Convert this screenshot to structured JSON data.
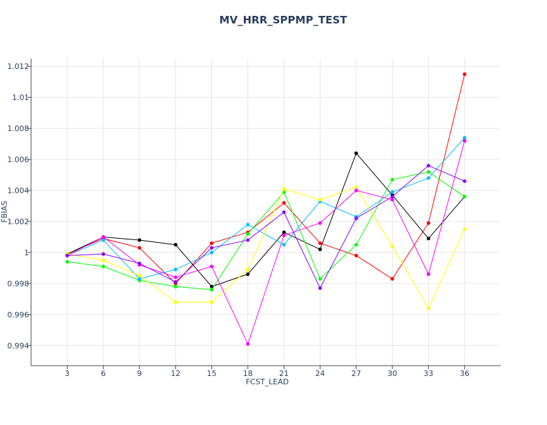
{
  "chart_data": {
    "type": "line",
    "title": "MV_HRR_SPPMP_TEST",
    "xlabel": "FCST_LEAD",
    "ylabel": "FBIAS",
    "x": [
      3,
      6,
      9,
      12,
      15,
      18,
      21,
      24,
      27,
      30,
      33,
      36
    ],
    "xlim": [
      0,
      39
    ],
    "ylim": [
      0.9927,
      1.0125
    ],
    "yticks": [
      0.994,
      0.996,
      0.998,
      1,
      1.002,
      1.004,
      1.006,
      1.008,
      1.01,
      1.012
    ],
    "ytick_labels": [
      "0.994",
      "0.996",
      "0.998",
      "1",
      "1.002",
      "1.004",
      "1.006",
      "1.008",
      "1.01",
      "1.012"
    ],
    "xtick_labels": [
      "3",
      "6",
      "9",
      "12",
      "15",
      "18",
      "21",
      "24",
      "27",
      "30",
      "33",
      "36"
    ],
    "grid": true,
    "legend": "none",
    "series": [
      {
        "color": "#ff0000",
        "values": [
          0.9999,
          1.0009,
          1.0003,
          0.998,
          1.0006,
          1.0013,
          1.0032,
          1.0006,
          0.9998,
          0.9983,
          1.0019,
          1.0115
        ]
      },
      {
        "color": "#000000",
        "values": [
          0.9999,
          1.001,
          1.0008,
          1.0005,
          0.9978,
          0.9986,
          1.0013,
          1.0002,
          1.0064,
          1.0037,
          1.0009,
          1.0036
        ]
      },
      {
        "color": "#00ff00",
        "values": [
          0.9994,
          0.9991,
          0.9982,
          0.9978,
          0.9976,
          1.0012,
          1.0039,
          0.9983,
          1.0005,
          1.0047,
          1.0052,
          1.0036
        ]
      },
      {
        "color": "#00bfff",
        "values": [
          0.9998,
          1.0008,
          0.9983,
          0.9989,
          1.0,
          1.0018,
          1.0005,
          1.0033,
          1.0023,
          1.0039,
          1.0048,
          1.0074
        ]
      },
      {
        "color": "#ffff00",
        "values": [
          0.9999,
          0.9995,
          0.9985,
          0.9968,
          0.9968,
          0.9989,
          1.0041,
          1.0034,
          1.0042,
          1.0004,
          0.9964,
          1.0015
        ]
      },
      {
        "color": "#ff00ff",
        "values": [
          0.9998,
          1.001,
          0.9992,
          0.9984,
          0.9991,
          0.9941,
          1.0011,
          1.0019,
          1.004,
          1.0034,
          0.9986,
          1.0072
        ]
      },
      {
        "color": "#8b00ff",
        "values": [
          0.9998,
          0.9999,
          0.9993,
          0.9981,
          1.0003,
          1.0008,
          1.0026,
          0.9977,
          1.0022,
          1.0036,
          1.0056,
          1.0046
        ]
      }
    ]
  }
}
